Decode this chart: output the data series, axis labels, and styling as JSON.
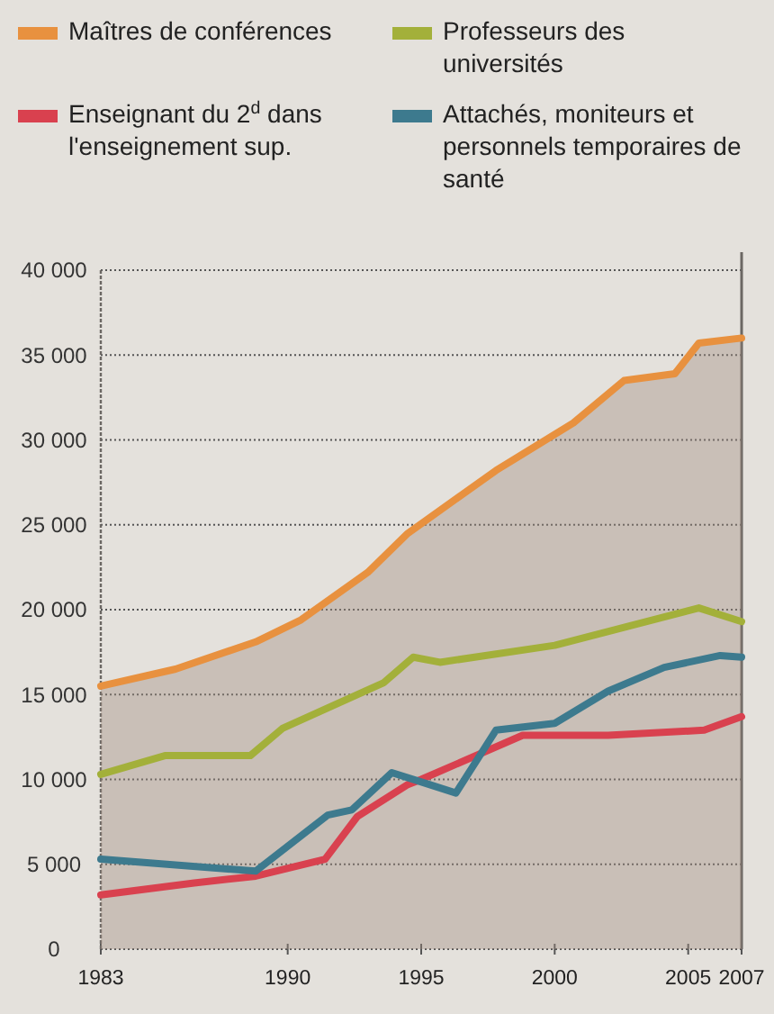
{
  "chart_data": {
    "type": "line",
    "xlim": [
      1983,
      2007
    ],
    "xticks": [
      1983,
      1990,
      1995,
      2000,
      2005,
      2007
    ],
    "ylim": [
      0,
      40000
    ],
    "yticks": [
      0,
      {
        "value": 5000,
        "label": "5 000"
      },
      {
        "value": 10000,
        "label": "10 000"
      },
      {
        "value": 15000,
        "label": "15 000"
      },
      {
        "value": 20000,
        "label": "20 000"
      },
      {
        "value": 25000,
        "label": "25 000"
      },
      {
        "value": 30000,
        "label": "30 000"
      },
      {
        "value": 35000,
        "label": "35 000"
      },
      {
        "value": 40000,
        "label": "40 000"
      }
    ],
    "grid": "y",
    "legend": "top",
    "ref_lines": [
      {
        "axis": "x",
        "value": 2007,
        "color": "#6b6763"
      }
    ],
    "series": [
      {
        "name": "Maîtres de conférences",
        "type": "area",
        "color": "#e8913f",
        "x": [
          1983,
          1985.8,
          1988.8,
          1990.5,
          1993,
          1994.5,
          1997.8,
          2000.7,
          2002.6,
          2004.5,
          2005.4,
          2007
        ],
        "values": [
          15500,
          16500,
          18100,
          19400,
          22200,
          24500,
          28200,
          31000,
          33500,
          33900,
          35700,
          36000
        ]
      },
      {
        "name": "Professeurs des universités",
        "color": "#a3b03a",
        "x": [
          1983,
          1985.4,
          1988.6,
          1989.8,
          1993.6,
          1994.7,
          1995.7,
          2000,
          2005.4,
          2007
        ],
        "values": [
          10300,
          11400,
          11400,
          13000,
          15700,
          17200,
          16900,
          17900,
          20100,
          19300
        ]
      },
      {
        "name": "Enseignant du 2$^{d}$ dans l'enseignement sup.",
        "color": "#d9414f",
        "x": [
          1983,
          1986.5,
          1988.8,
          1991.4,
          1992.6,
          1994.5,
          1995,
          1998.8,
          2002,
          2005.6,
          2007
        ],
        "values": [
          3200,
          3900,
          4300,
          5300,
          7800,
          9700,
          10000,
          12600,
          12600,
          12900,
          13700
        ]
      },
      {
        "name": "Attachés, moniteurs et personnels temporaires de santé",
        "color": "#3d7a8e",
        "x": [
          1983,
          1988.8,
          1991.5,
          1992.4,
          1993.9,
          1995.3,
          1996.3,
          1997.8,
          2000,
          2002,
          2004.1,
          2006.2,
          2007
        ],
        "values": [
          5300,
          4600,
          7900,
          8200,
          10400,
          9700,
          9200,
          12900,
          13300,
          15200,
          16600,
          17300,
          17200
        ]
      }
    ]
  }
}
